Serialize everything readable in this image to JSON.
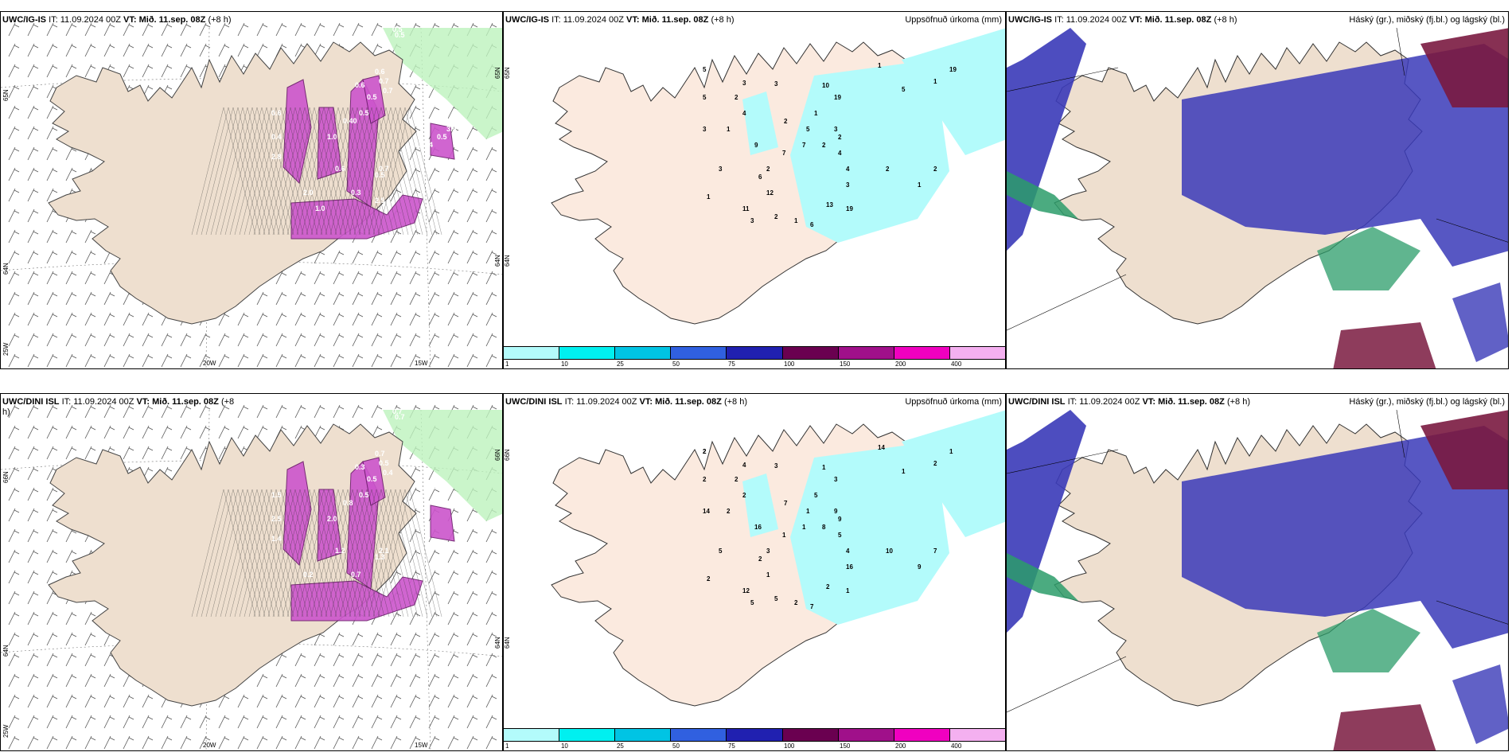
{
  "panels": [
    {
      "id": "p1",
      "title_model": "UWC/IG-IS",
      "title_it": "IT: 11.09.2024 00Z",
      "title_vt_label": "VT:",
      "title_vt": "Mið. 11.sep. 08Z",
      "title_step": "(+8 h)",
      "right": "",
      "type": "wind",
      "axis": {
        "lon1": "20W",
        "lon2": "15W",
        "lat1": "65N",
        "lat2": "64N",
        "lat3": "25W",
        "lat4": "65N",
        "lat5": "64N"
      },
      "values": [
        "0.5",
        "0.5",
        "0.6",
        "0.7",
        "0.7",
        "0.6",
        "0.40",
        "0.5",
        "0.5",
        "0.6",
        "0.4",
        "0.9",
        "0.5",
        "1.0",
        "2.8",
        "0.6",
        "0.7",
        "0.5",
        "0.3",
        "2.0",
        "1.0",
        "2.5",
        "0.7",
        "3.9",
        "0.5",
        "4",
        "0.4"
      ]
    },
    {
      "id": "p2",
      "title_model": "UWC/IG-IS",
      "title_it": "IT: 11.09.2024 00Z",
      "title_vt_label": "VT:",
      "title_vt": "Mið. 11.sep. 08Z",
      "title_step": "(+8 h)",
      "right": "Uppsöfnuð úrkoma (mm)",
      "type": "precip",
      "axis": {
        "lat1": "65N",
        "lat2": "64N"
      },
      "values": [
        "5",
        "2",
        "3",
        "3",
        "10",
        "19",
        "2",
        "1",
        "3",
        "7",
        "5",
        "4",
        "5",
        "1",
        "2",
        "2",
        "3",
        "9",
        "7",
        "2",
        "4",
        "3",
        "6",
        "12",
        "1",
        "4",
        "11",
        "3",
        "2",
        "1",
        "19",
        "2",
        "6",
        "13",
        "3",
        "1",
        "2",
        "1",
        "5",
        "1",
        "19"
      ]
    },
    {
      "id": "p3",
      "title_model": "UWC/IG-IS",
      "title_it": "IT: 11.09.2024 00Z",
      "title_vt_label": "VT:",
      "title_vt": "Mið. 11.sep. 08Z",
      "title_step": "(+8 h)",
      "right": "Háský (gr.), miðský (fj.bl.) og lágský (bl.)",
      "type": "cloud"
    },
    {
      "id": "p4",
      "title_model": "UWC/DINI ISL",
      "title_it": "IT: 11.09.2024 00Z",
      "title_vt_label": "VT:",
      "title_vt": "Mið. 11.sep. 08Z",
      "title_step": "(+8 h)",
      "right": "",
      "type": "wind",
      "axis": {
        "lon1": "20W",
        "lon2": "15W",
        "lat1": "66N",
        "lat2": "64N",
        "lat3": "25W",
        "lat4": "66N",
        "lat5": "64N"
      },
      "values": [
        "0.7",
        "0.7",
        "0.7",
        "0.5",
        "0.4",
        "0.3",
        "0.8",
        "0.5",
        "0.5",
        "1.5",
        "2.5",
        "0.6",
        "3.9",
        "2.0",
        "1.4",
        "1.2",
        "2.1",
        "1.3",
        "0.7",
        "0.2"
      ]
    },
    {
      "id": "p5",
      "title_model": "UWC/DINI ISL",
      "title_it": "IT: 11.09.2024 00Z",
      "title_vt_label": "VT:",
      "title_vt": "Mið. 11.sep. 08Z",
      "title_step": "(+8 h)",
      "right": "Uppsöfnuð úrkoma (mm)",
      "type": "precip",
      "axis": {
        "lat1": "66N",
        "lat2": "64N"
      },
      "values": [
        "2",
        "2",
        "4",
        "3",
        "1",
        "3",
        "7",
        "5",
        "9",
        "1",
        "2",
        "2",
        "1",
        "2",
        "8",
        "9",
        "14",
        "16",
        "1",
        "3",
        "5",
        "5",
        "2",
        "1",
        "2",
        "4",
        "12",
        "5",
        "5",
        "2",
        "1",
        "10",
        "7",
        "2",
        "16",
        "9",
        "7",
        "14",
        "1",
        "2",
        "1",
        "2"
      ]
    },
    {
      "id": "p6",
      "title_model": "UWC/DINI ISL",
      "title_it": "IT: 11.09.2024 00Z",
      "title_vt_label": "VT:",
      "title_vt": "Mið. 11.sep. 08Z",
      "title_step": "(+8 h)",
      "right": "Háský (gr.), miðský (fj.bl.) og lágský (bl.)",
      "type": "cloud"
    }
  ],
  "legend": {
    "colors": [
      "#b3fbfb",
      "#00f0f0",
      "#00c4e4",
      "#3060e0",
      "#2020b0",
      "#6a0050",
      "#a0108a",
      "#f000c0",
      "#f4b0f0"
    ],
    "ticks": [
      "1",
      "10",
      "25",
      "50",
      "75",
      "100",
      "150",
      "200",
      "400"
    ]
  },
  "colors": {
    "land": "#eedfcf",
    "sea": "#ffffff",
    "wind_lines": "#555555",
    "precip": "#b3fbfb",
    "cloud_high": "#3a3ab8",
    "cloud_mid": "#2b9c6a",
    "cloud_low": "#7a1a40",
    "snow": "#cc55cc",
    "hatch": "#000000"
  }
}
